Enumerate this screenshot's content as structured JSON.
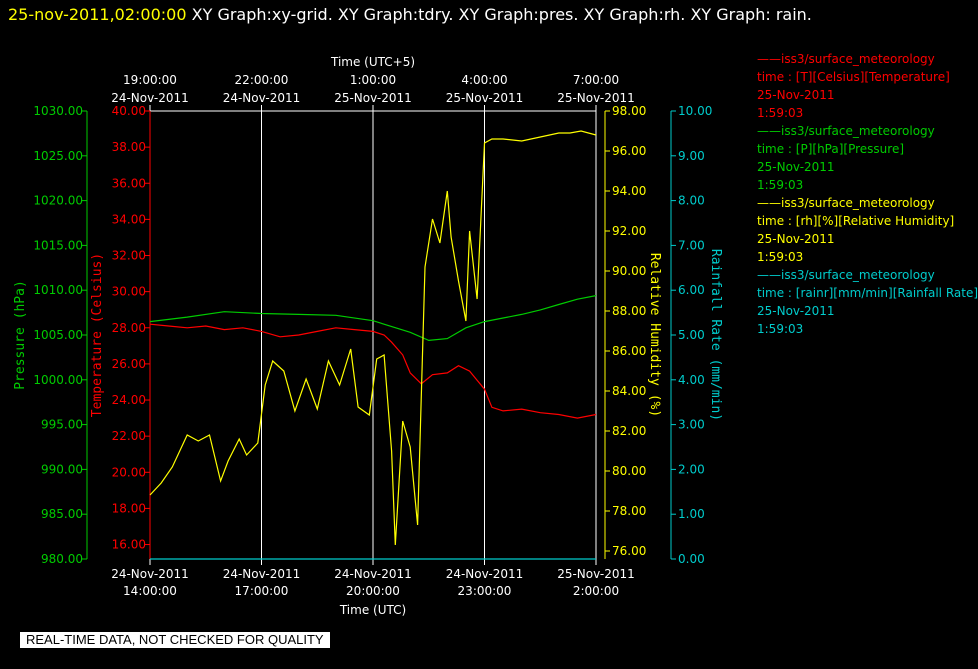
{
  "header": {
    "timestamp": "25-nov-2011,02:00:00",
    "graphs": " XY Graph:xy-grid.  XY Graph:tdry.  XY Graph:pres.  XY Graph:rh.  XY Graph: rain."
  },
  "colors": {
    "pressure": "#00cc00",
    "temperature": "#ff0000",
    "humidity": "#ffff00",
    "rain": "#00cccc",
    "grid": "#ffffff",
    "text": "#ffffff"
  },
  "chart_data": {
    "type": "line",
    "top_axis": {
      "title": "Time (UTC+5)",
      "ticks": [
        {
          "time": "19:00:00",
          "date": "24-Nov-2011"
        },
        {
          "time": "22:00:00",
          "date": "24-Nov-2011"
        },
        {
          "time": "1:00:00",
          "date": "25-Nov-2011"
        },
        {
          "time": "4:00:00",
          "date": "25-Nov-2011"
        },
        {
          "time": "7:00:00",
          "date": "25-Nov-2011"
        }
      ]
    },
    "bottom_axis": {
      "title": "Time (UTC)",
      "ticks": [
        {
          "date": "24-Nov-2011",
          "time": "14:00:00"
        },
        {
          "date": "24-Nov-2011",
          "time": "17:00:00"
        },
        {
          "date": "24-Nov-2011",
          "time": "20:00:00"
        },
        {
          "date": "24-Nov-2011",
          "time": "23:00:00"
        },
        {
          "date": "25-Nov-2011",
          "time": "2:00:00"
        }
      ]
    },
    "x_range_hours_utc": [
      14,
      26
    ],
    "grid": true,
    "axes": {
      "pressure": {
        "label": "Pressure (hPa)",
        "range": [
          980,
          1030
        ],
        "ticks": [
          "980.00",
          "985.00",
          "990.00",
          "995.00",
          "1000.00",
          "1005.00",
          "1010.00",
          "1015.00",
          "1020.00",
          "1025.00",
          "1030.00"
        ]
      },
      "temperature": {
        "label": "Temperature (Celsius)",
        "range": [
          15.2,
          40
        ],
        "ticks": [
          "16.00",
          "18.00",
          "20.00",
          "22.00",
          "24.00",
          "26.00",
          "28.00",
          "30.00",
          "32.00",
          "34.00",
          "36.00",
          "38.00",
          "40.00"
        ]
      },
      "humidity": {
        "label": "Relative Humidity (%)",
        "range": [
          75.6,
          98
        ],
        "ticks": [
          "76.00",
          "78.00",
          "80.00",
          "82.00",
          "84.00",
          "86.00",
          "88.00",
          "90.00",
          "92.00",
          "94.00",
          "96.00",
          "98.00"
        ]
      },
      "rain": {
        "label": "Rainfall Rate (mm/min)",
        "range": [
          0,
          10
        ],
        "ticks": [
          "0.00",
          "1.00",
          "2.00",
          "3.00",
          "4.00",
          "5.00",
          "6.00",
          "7.00",
          "8.00",
          "9.00",
          "10.00"
        ]
      }
    },
    "series": [
      {
        "key": "temperature",
        "x": [
          14,
          14.5,
          15,
          15.5,
          16,
          16.5,
          17,
          17.5,
          18,
          18.5,
          19,
          19.5,
          20,
          20.3,
          20.5,
          20.8,
          21,
          21.3,
          21.6,
          22,
          22.3,
          22.6,
          22.8,
          23,
          23.2,
          23.5,
          24,
          24.5,
          25,
          25.5,
          26
        ],
        "y": [
          28.2,
          28.1,
          28.0,
          28.1,
          27.9,
          28.0,
          27.8,
          27.5,
          27.6,
          27.8,
          28.0,
          27.9,
          27.8,
          27.6,
          27.2,
          26.5,
          25.5,
          24.9,
          25.4,
          25.5,
          25.9,
          25.6,
          25.1,
          24.6,
          23.6,
          23.4,
          23.5,
          23.3,
          23.2,
          23.0,
          23.2
        ]
      },
      {
        "key": "pressure",
        "x": [
          14,
          15,
          16,
          17,
          18,
          19,
          20,
          21,
          21.5,
          22,
          22.5,
          23,
          23.5,
          24,
          24.5,
          25,
          25.5,
          26
        ],
        "y": [
          1006.5,
          1007.0,
          1007.6,
          1007.4,
          1007.3,
          1007.2,
          1006.6,
          1005.3,
          1004.4,
          1004.6,
          1005.8,
          1006.5,
          1006.9,
          1007.3,
          1007.8,
          1008.4,
          1009.0,
          1009.4
        ]
      },
      {
        "key": "humidity",
        "x": [
          14,
          14.3,
          14.6,
          15,
          15.3,
          15.6,
          15.9,
          16.1,
          16.4,
          16.6,
          16.9,
          17.1,
          17.3,
          17.6,
          17.9,
          18.2,
          18.5,
          18.8,
          19.1,
          19.4,
          19.6,
          19.9,
          20.1,
          20.3,
          20.5,
          20.6,
          20.8,
          21,
          21.2,
          21.4,
          21.6,
          21.8,
          22,
          22.1,
          22.3,
          22.5,
          22.6,
          22.8,
          23,
          23.2,
          23.5,
          24,
          24.5,
          25,
          25.3,
          25.6,
          26
        ],
        "y": [
          78.8,
          79.4,
          80.2,
          81.8,
          81.5,
          81.8,
          79.5,
          80.5,
          81.6,
          80.8,
          81.4,
          84.3,
          85.5,
          85.0,
          83.0,
          84.6,
          83.1,
          85.5,
          84.3,
          86.1,
          83.2,
          82.8,
          85.6,
          85.8,
          81.0,
          76.3,
          82.5,
          81.2,
          77.3,
          90.2,
          92.6,
          91.4,
          94.0,
          91.7,
          89.5,
          87.5,
          92.0,
          88.6,
          96.4,
          96.6,
          96.6,
          96.5,
          96.7,
          96.9,
          96.9,
          97.0,
          96.8
        ]
      },
      {
        "key": "rain",
        "x": [
          14,
          26
        ],
        "y": [
          0.0,
          0.0
        ]
      }
    ]
  },
  "legend": [
    {
      "series": "temperature",
      "lines": [
        "——iss3/surface_meteorology",
        "time : [T][Celsius][Temperature]",
        "25-Nov-2011",
        "1:59:03"
      ]
    },
    {
      "series": "pressure",
      "lines": [
        "——iss3/surface_meteorology",
        "time : [P][hPa][Pressure]",
        "25-Nov-2011",
        "1:59:03"
      ]
    },
    {
      "series": "humidity",
      "lines": [
        "——iss3/surface_meteorology",
        "time : [rh][%][Relative Humidity]",
        "25-Nov-2011",
        "1:59:03"
      ]
    },
    {
      "series": "rain",
      "lines": [
        "——iss3/surface_meteorology",
        "time : [rainr][mm/min][Rainfall Rate]",
        "25-Nov-2011",
        "1:59:03"
      ]
    }
  ],
  "footer": {
    "quality_note": "REAL-TIME DATA, NOT CHECKED FOR QUALITY"
  }
}
